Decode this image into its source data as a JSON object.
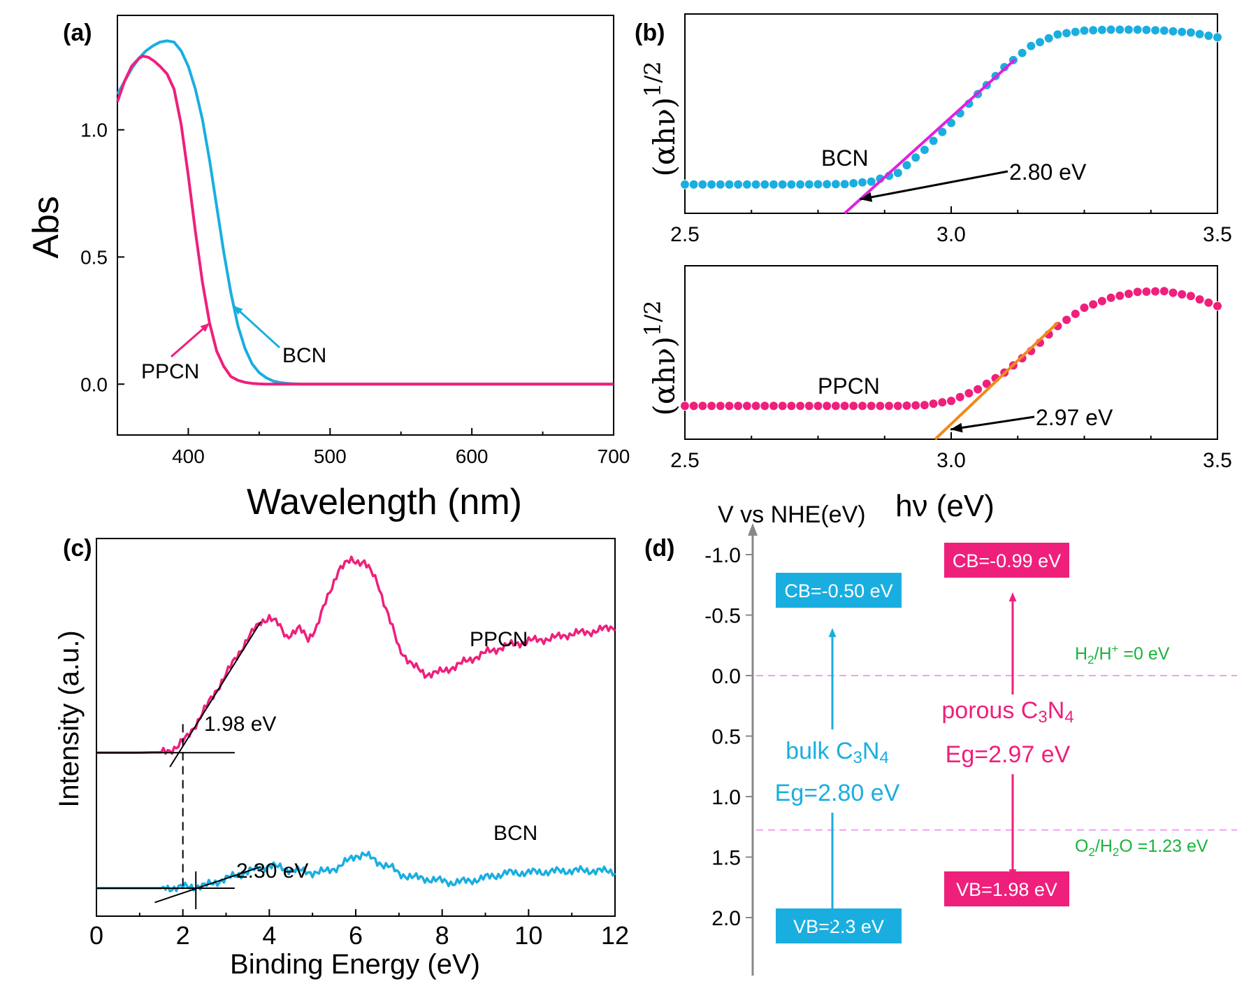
{
  "colors": {
    "bcn": "#1aaee0",
    "ppcn": "#ef1f7c",
    "fit_b": "#e020e0",
    "fit_b2": "#f08a1a",
    "ref_line": "#f0a0f0",
    "ref_text": "#18b43a",
    "axis": "#000000",
    "vline": "#888888"
  },
  "chart_data": [
    {
      "panel": "(a)",
      "type": "line",
      "xlabel": "Wavelength (nm)",
      "ylabel": "Abs",
      "xlim": [
        350,
        700
      ],
      "ylim": [
        -0.2,
        1.45
      ],
      "xticks": [
        400,
        500,
        600,
        700
      ],
      "yticks": [
        0.0,
        0.5,
        1.0
      ],
      "xtick_labels": [
        "400",
        "500",
        "600",
        "700"
      ],
      "ytick_labels": [
        "0.0",
        "0.5",
        "1.0"
      ],
      "series": [
        {
          "name": "BCN",
          "x": [
            350,
            355,
            360,
            365,
            370,
            375,
            380,
            385,
            390,
            395,
            400,
            405,
            410,
            415,
            420,
            425,
            430,
            435,
            440,
            445,
            450,
            455,
            460,
            465,
            470,
            475,
            480,
            490,
            500,
            550,
            600,
            650,
            700
          ],
          "y": [
            1.14,
            1.19,
            1.24,
            1.28,
            1.31,
            1.33,
            1.345,
            1.35,
            1.345,
            1.31,
            1.25,
            1.16,
            1.04,
            0.88,
            0.7,
            0.52,
            0.36,
            0.23,
            0.14,
            0.08,
            0.045,
            0.025,
            0.012,
            0.006,
            0.003,
            0.001,
            0.0,
            0.0,
            0.0,
            0.0,
            0.0,
            0.0,
            0.0
          ]
        },
        {
          "name": "PPCN",
          "x": [
            350,
            355,
            360,
            365,
            368,
            372,
            376,
            380,
            385,
            390,
            395,
            400,
            405,
            410,
            415,
            420,
            425,
            430,
            435,
            440,
            445,
            450,
            455,
            460,
            470,
            480,
            500,
            550,
            600,
            650,
            700
          ],
          "y": [
            1.11,
            1.19,
            1.25,
            1.28,
            1.29,
            1.285,
            1.27,
            1.25,
            1.22,
            1.16,
            1.02,
            0.82,
            0.6,
            0.4,
            0.24,
            0.13,
            0.07,
            0.03,
            0.015,
            0.007,
            0.003,
            0.001,
            0.0,
            0.0,
            0.0,
            0.0,
            0.0,
            0.0,
            0.0,
            0.0,
            0.0
          ]
        }
      ],
      "annotations": [
        {
          "text": "BCN",
          "series": "BCN",
          "at_x": 432
        },
        {
          "text": "PPCN",
          "series": "PPCN",
          "at_x": 415
        }
      ]
    },
    {
      "panel": "(b)",
      "type": "scatter",
      "xlabel": "hν (eV)",
      "ylabel_main": "(αhν)",
      "ylabel_exp": "1/2",
      "xlim": [
        2.5,
        3.5
      ],
      "xticks": [
        2.5,
        3.0,
        3.5
      ],
      "xtick_labels": [
        "2.5",
        "3.0",
        "3.5"
      ],
      "subplots": [
        {
          "name": "BCN",
          "ylim": [
            0.0,
            1.0
          ],
          "x": [
            2.5,
            2.6,
            2.7,
            2.8,
            2.85,
            2.9,
            2.95,
            3.0,
            3.05,
            3.1,
            3.15,
            3.2,
            3.25,
            3.3,
            3.35,
            3.4,
            3.45,
            3.5
          ],
          "y": [
            0.15,
            0.15,
            0.15,
            0.152,
            0.165,
            0.21,
            0.33,
            0.47,
            0.62,
            0.76,
            0.87,
            0.93,
            0.95,
            0.955,
            0.955,
            0.95,
            0.94,
            0.915
          ],
          "fit": {
            "x": [
              2.8,
              3.12
            ],
            "y": [
              0.0,
              0.8
            ]
          },
          "label": "BCN",
          "gap_label": "2.80 eV",
          "gap_value": 2.8
        },
        {
          "name": "PPCN",
          "ylim": [
            0.0,
            1.0
          ],
          "x": [
            2.5,
            2.6,
            2.7,
            2.8,
            2.9,
            2.95,
            3.0,
            3.05,
            3.1,
            3.15,
            3.2,
            3.25,
            3.3,
            3.35,
            3.4,
            3.45,
            3.5
          ],
          "y": [
            0.2,
            0.2,
            0.2,
            0.2,
            0.2,
            0.205,
            0.23,
            0.3,
            0.4,
            0.53,
            0.68,
            0.79,
            0.85,
            0.885,
            0.89,
            0.86,
            0.8
          ],
          "fit": {
            "x": [
              2.97,
              3.2
            ],
            "y": [
              0.0,
              0.7
            ]
          },
          "label": "PPCN",
          "gap_label": "2.97 eV",
          "gap_value": 2.97
        }
      ]
    },
    {
      "panel": "(c)",
      "type": "line",
      "xlabel": "Binding Energy (eV)",
      "ylabel": "Intensity (a.u.)",
      "xlim": [
        0,
        12
      ],
      "ylim": [
        0,
        10
      ],
      "xticks": [
        0,
        2,
        4,
        6,
        8,
        10,
        12
      ],
      "xtick_labels": [
        "0",
        "2",
        "4",
        "6",
        "8",
        "10",
        "12"
      ],
      "series": [
        {
          "name": "PPCN",
          "x": [
            0,
            0.5,
            1.0,
            1.5,
            1.7,
            1.9,
            2.1,
            2.3,
            2.6,
            2.9,
            3.2,
            3.5,
            3.8,
            4.0,
            4.2,
            4.4,
            4.7,
            4.9,
            5.1,
            5.3,
            5.6,
            5.9,
            6.2,
            6.5,
            6.8,
            7.0,
            7.3,
            7.6,
            8.0,
            8.5,
            9.0,
            9.5,
            10.0,
            10.5,
            11.0,
            11.5,
            12.0
          ],
          "y": [
            5.35,
            5.35,
            5.35,
            5.36,
            5.4,
            5.5,
            5.68,
            5.95,
            6.4,
            6.85,
            7.3,
            7.75,
            8.1,
            8.2,
            8.05,
            7.8,
            7.95,
            7.75,
            8.0,
            8.5,
            9.2,
            9.4,
            9.35,
            8.95,
            8.1,
            7.55,
            7.2,
            7.0,
            7.05,
            7.25,
            7.45,
            7.6,
            7.7,
            7.75,
            7.85,
            7.9,
            8.0
          ]
        },
        {
          "name": "BCN",
          "x": [
            0,
            0.5,
            1.0,
            1.5,
            2.0,
            2.5,
            3.0,
            3.5,
            3.8,
            4.0,
            4.3,
            4.6,
            5.0,
            5.3,
            5.6,
            6.0,
            6.2,
            6.5,
            6.8,
            7.0,
            7.4,
            7.8,
            8.2,
            8.6,
            9.0,
            9.5,
            10.0,
            10.5,
            11.0,
            11.5,
            12.0
          ],
          "y": [
            2.5,
            2.5,
            2.5,
            2.5,
            2.52,
            2.55,
            2.7,
            2.85,
            2.92,
            2.98,
            2.92,
            2.88,
            2.83,
            2.85,
            2.95,
            3.18,
            3.22,
            3.05,
            2.95,
            2.8,
            2.72,
            2.68,
            2.62,
            2.65,
            2.72,
            2.82,
            2.83,
            2.85,
            2.87,
            2.87,
            2.85
          ]
        }
      ],
      "fits": [
        {
          "series": "PPCN",
          "baseline_y": 5.35,
          "x": [
            1.7,
            3.8
          ],
          "y": [
            5.05,
            8.1
          ],
          "intercept": 1.98
        },
        {
          "series": "BCN",
          "baseline_y": 2.5,
          "x": [
            1.35,
            3.8
          ],
          "y": [
            2.2,
            2.95
          ],
          "intercept": 2.3
        }
      ],
      "dashed_x": 2.0,
      "labels": [
        {
          "text": "PPCN"
        },
        {
          "text": "BCN"
        },
        {
          "text": "1.98 eV"
        },
        {
          "text": "2.30 eV"
        }
      ]
    },
    {
      "panel": "(d)",
      "type": "diagram",
      "axis_title": "V vs NHE(eV)",
      "ylim": [
        -1.3,
        2.55
      ],
      "yticks": [
        -1.0,
        -0.5,
        0.0,
        0.5,
        1.0,
        1.5,
        2.0
      ],
      "ytick_labels": [
        "-1.0",
        "-0.5",
        "0.0",
        "0.5",
        "1.0",
        "1.5",
        "2.0"
      ],
      "references": [
        {
          "name": "H2/H+",
          "value": 0.0,
          "label": "H2/H+ =0 eV"
        },
        {
          "name": "O2/H2O",
          "value": 1.23,
          "label": "O2/H2O =1.23 eV"
        }
      ],
      "materials": [
        {
          "name": "bulk C3N4",
          "label_name": "bulk C",
          "sub1": "3",
          "mid": "N",
          "sub2": "4",
          "gap_label": "Eg=2.80 eV",
          "cb": -0.5,
          "vb": 2.3,
          "cb_label": "CB=-0.50 eV",
          "vb_label": "VB=2.3 eV",
          "color": "bcn"
        },
        {
          "name": "porous C3N4",
          "label_name": "porous C",
          "sub1": "3",
          "mid": "N",
          "sub2": "4",
          "gap_label": "Eg=2.97 eV",
          "cb": -0.99,
          "vb": 1.98,
          "cb_label": "CB=-0.99 eV",
          "vb_label": "VB=1.98 eV",
          "color": "ppcn"
        }
      ]
    }
  ],
  "panel_labels": {
    "a": "(a)",
    "b": "(b)",
    "c": "(c)",
    "d": "(d)"
  }
}
